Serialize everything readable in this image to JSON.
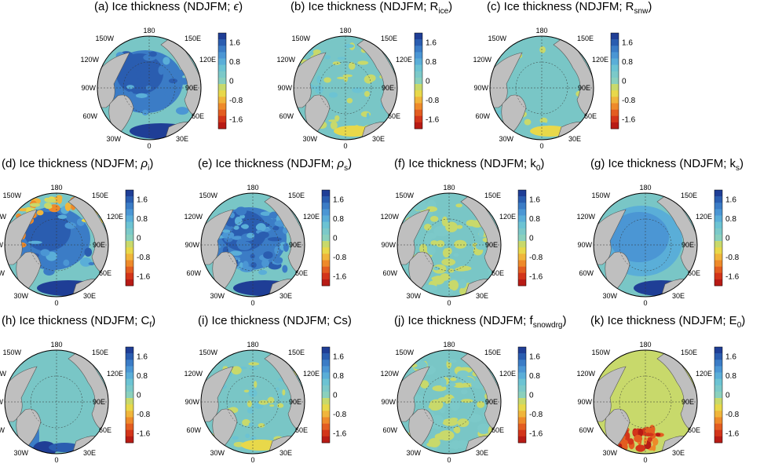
{
  "panels": [
    {
      "id": "a",
      "title": "(a) Ice thickness (NDJFM; ",
      "sym": "ϵ",
      "sub": "",
      "close": ")",
      "pattern": "pos"
    },
    {
      "id": "b",
      "title": "(b) Ice thickness (NDJFM; R",
      "sym": "",
      "sub": "ice",
      "close": ")",
      "pattern": "mixed_light"
    },
    {
      "id": "c",
      "title": "(c) Ice thickness (NDJFM; R",
      "sym": "",
      "sub": "snw",
      "close": ")",
      "pattern": "mostly_zero"
    },
    {
      "id": "d",
      "title": "(d) Ice thickness (NDJFM; ",
      "sym": "ρ",
      "sub": "i",
      "close": ")",
      "pattern": "pos_edge_neg"
    },
    {
      "id": "e",
      "title": "(e) Ice thickness (NDJFM; ",
      "sym": "ρ",
      "sub": "s",
      "close": ")",
      "pattern": "pos_noisy"
    },
    {
      "id": "f",
      "title": "(f) Ice thickness (NDJFM; k",
      "sym": "",
      "sub": "0",
      "close": ")",
      "pattern": "mixed_yellow"
    },
    {
      "id": "g",
      "title": "(g) Ice thickness (NDJFM; k",
      "sym": "",
      "sub": "s",
      "close": ")",
      "pattern": "pos_smooth"
    },
    {
      "id": "h",
      "title": "(h) Ice thickness (NDJFM; C",
      "sym": "",
      "sub": "f",
      "close": ")",
      "pattern": "zero_with_atlantic"
    },
    {
      "id": "i",
      "title": "(i) Ice thickness (NDJFM; Cs)",
      "sym": "",
      "sub": "",
      "close": "",
      "pattern": "mixed_light"
    },
    {
      "id": "j",
      "title": "(j) Ice thickness (NDJFM; f",
      "sym": "",
      "sub": "snowdrg",
      "close": ")",
      "pattern": "mixed_yellow"
    },
    {
      "id": "k",
      "title": "(k) Ice thickness (NDJFM; E",
      "sym": "",
      "sub": "0",
      "close": ")",
      "pattern": "yellow_neg_atlantic"
    }
  ],
  "map_labels": {
    "top": "180",
    "bottom": "0",
    "upper_left": "150W",
    "upper_right": "150E",
    "mid_upper_left": "120W",
    "mid_upper_right": "120E",
    "left": "90W",
    "right": "90E",
    "mid_lower_left": "60W",
    "mid_lower_right": "60E",
    "lower_left": "30W",
    "lower_right": "30E"
  },
  "colorbar": {
    "ticks": [
      "1.6",
      "0.8",
      "0",
      "-0.8",
      "-1.6"
    ],
    "colors": [
      "#1f3e96",
      "#2a5db0",
      "#3b7cc6",
      "#4b96d4",
      "#5aaed8",
      "#6cc3d3",
      "#7cc9c9",
      "#8ad0bd",
      "#c8d96b",
      "#e8d84a",
      "#f0b53b",
      "#ee8a2a",
      "#e35d21",
      "#d3351a",
      "#b81b15"
    ]
  },
  "palette": {
    "ocean_zero": "#79c6c6",
    "land": "#bfbfbf",
    "land_edge": "#555555"
  }
}
